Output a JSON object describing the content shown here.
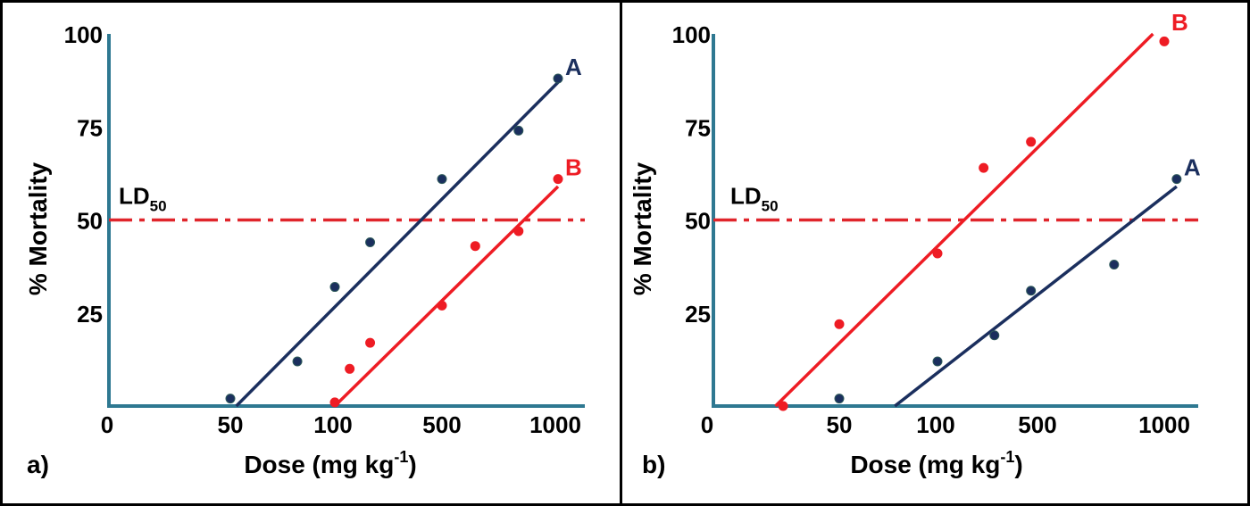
{
  "colors": {
    "A": "#1b2f5e",
    "B": "#ee1c24",
    "axis": "#2e7891",
    "ld50": "#e0252b",
    "text": "#000000"
  },
  "chart_data": [
    {
      "type": "line",
      "panel_label": "a)",
      "xlabel": "Dose (mg kg",
      "xlabel_sup": "-1",
      "xlabel_close": ")",
      "ylabel": "% Mortality",
      "x_scale": "log",
      "x_ticks": [
        "0",
        "50",
        "100",
        "500",
        "1000"
      ],
      "y_ticks": [
        "25",
        "50",
        "75",
        "100"
      ],
      "ylim": [
        0,
        100
      ],
      "reference_line": {
        "y": 50,
        "label": "LD",
        "label_sub": "50",
        "style": "dash-dot"
      },
      "grid": false,
      "series": [
        {
          "name": "A",
          "points": [
            [
              50,
              2
            ],
            [
              78,
              12
            ],
            [
              100,
              32
            ],
            [
              170,
              44
            ],
            [
              500,
              61
            ],
            [
              790,
              74
            ],
            [
              1000,
              88
            ]
          ],
          "fit": [
            [
              52,
              0
            ],
            [
              1000,
              87
            ]
          ]
        },
        {
          "name": "B",
          "points": [
            [
              100,
              1
            ],
            [
              125,
              10
            ],
            [
              170,
              17
            ],
            [
              500,
              27
            ],
            [
              610,
              43
            ],
            [
              790,
              47
            ],
            [
              1000,
              61
            ]
          ],
          "fit": [
            [
              100,
              0
            ],
            [
              1000,
              59
            ]
          ]
        }
      ]
    },
    {
      "type": "line",
      "panel_label": "b)",
      "xlabel": "Dose (mg kg",
      "xlabel_sup": "-1",
      "xlabel_close": ")",
      "ylabel": "% Mortality",
      "x_scale": "log",
      "x_ticks": [
        "0",
        "50",
        "100",
        "500",
        "1000"
      ],
      "y_ticks": [
        "25",
        "50",
        "75",
        "100"
      ],
      "ylim": [
        0,
        100
      ],
      "reference_line": {
        "y": 50,
        "label": "LD",
        "label_sub": "50",
        "style": "dash-dot"
      },
      "grid": false,
      "series": [
        {
          "name": "B",
          "points": [
            [
              28,
              0
            ],
            [
              50,
              22
            ],
            [
              100,
              41
            ],
            [
              210,
              64
            ],
            [
              450,
              71
            ],
            [
              1000,
              98
            ]
          ],
          "fit": [
            [
              25,
              0
            ],
            [
              940,
              100
            ]
          ]
        },
        {
          "name": "A",
          "points": [
            [
              50,
              2
            ],
            [
              100,
              12
            ],
            [
              250,
              19
            ],
            [
              450,
              31
            ],
            [
              760,
              38
            ],
            [
              1070,
              61
            ]
          ],
          "fit": [
            [
              74,
              0
            ],
            [
              1070,
              59
            ]
          ]
        }
      ]
    }
  ]
}
